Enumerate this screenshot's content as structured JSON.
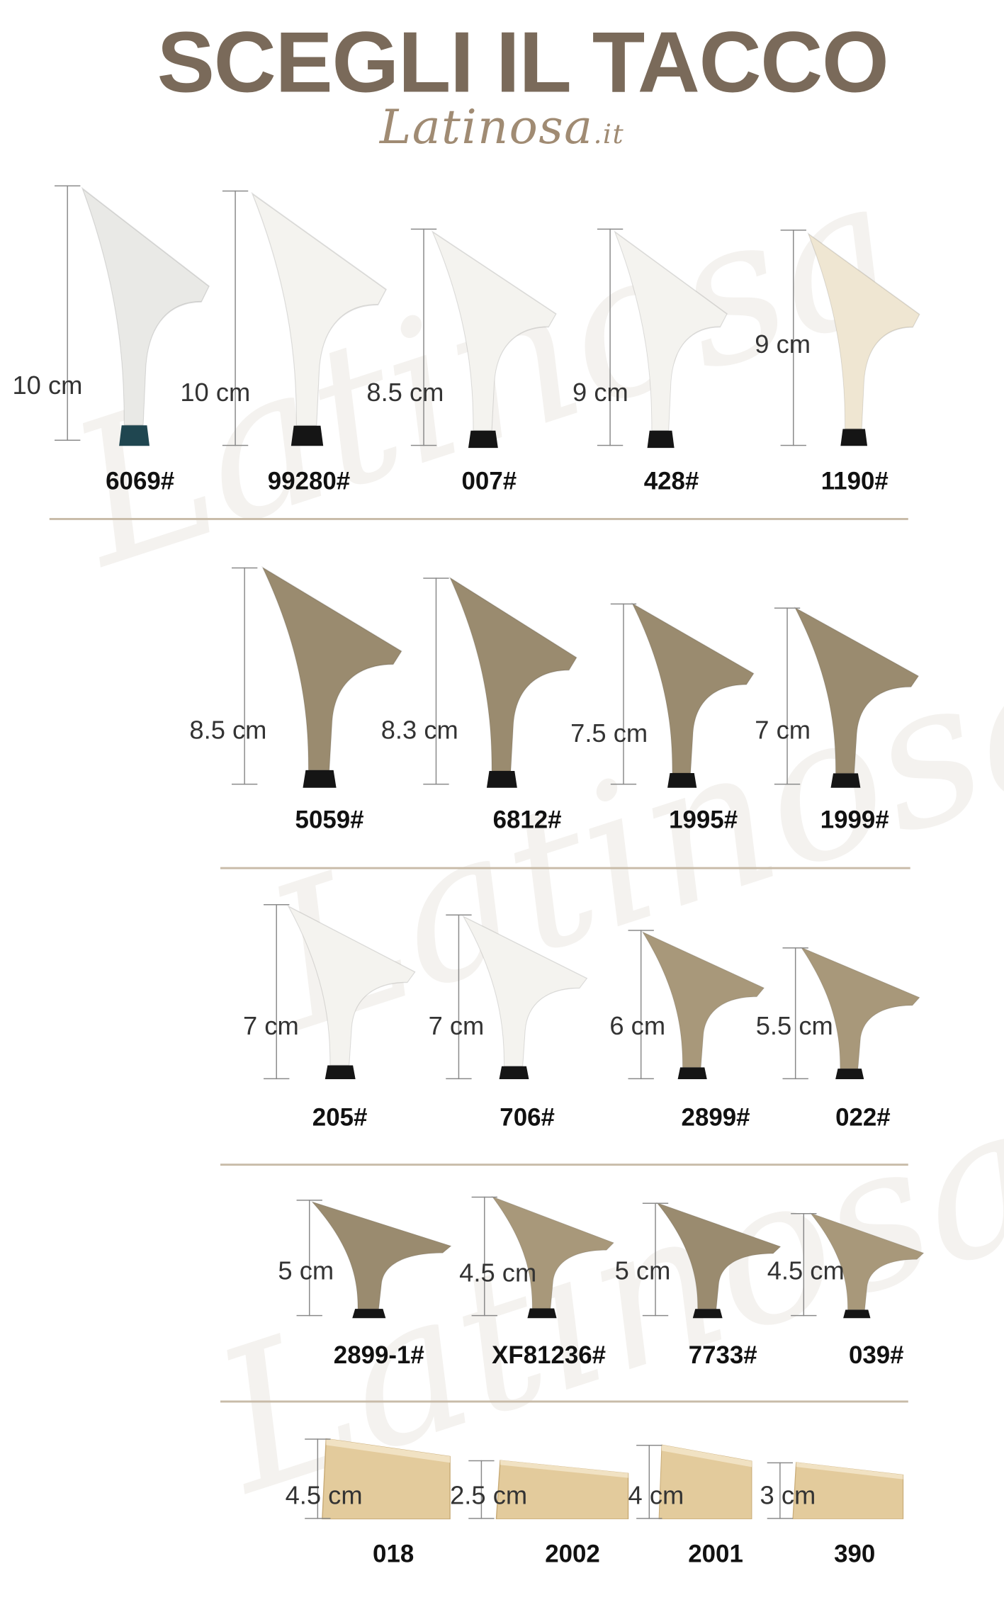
{
  "title": "SCEGLI IL TACCO",
  "brand": {
    "name": "Latinosa",
    "suffix": ".it"
  },
  "colors": {
    "title": "#7a6a5a",
    "white_heel": "#f4f3ef",
    "cream_heel": "#efe6d2",
    "tan_heel": "#9a8b6f",
    "wood_heel": "#e3cb9c",
    "tip": "#151515",
    "tip_teal": "#1f4650"
  },
  "rows": [
    {
      "items": [
        {
          "code": "6069#",
          "height": "10 cm",
          "color": "#e9e9e6",
          "tip": "#1f4650"
        },
        {
          "code": "99280#",
          "height": "10 cm",
          "color": "#f4f3ef",
          "tip": "#151515"
        },
        {
          "code": "007#",
          "height": "8.5 cm",
          "color": "#f4f3ef",
          "tip": "#151515"
        },
        {
          "code": "428#",
          "height": "9 cm",
          "color": "#f4f3ef",
          "tip": "#151515"
        },
        {
          "code": "1190#",
          "height": "9 cm",
          "color": "#efe6d2",
          "tip": "#151515"
        }
      ]
    },
    {
      "items": [
        {
          "code": "5059#",
          "height": "8.5 cm",
          "color": "#9a8b6f",
          "tip": "#151515"
        },
        {
          "code": "6812#",
          "height": "8.3 cm",
          "color": "#9a8b6f",
          "tip": "#151515"
        },
        {
          "code": "1995#",
          "height": "7.5 cm",
          "color": "#9a8b6f",
          "tip": "#151515"
        },
        {
          "code": "1999#",
          "height": "7 cm",
          "color": "#9a8b6f",
          "tip": "#151515"
        }
      ]
    },
    {
      "items": [
        {
          "code": "205#",
          "height": "7 cm",
          "color": "#f4f3ef",
          "tip": "#151515"
        },
        {
          "code": "706#",
          "height": "7 cm",
          "color": "#f4f3ef",
          "tip": "#151515"
        },
        {
          "code": "2899#",
          "height": "6 cm",
          "color": "#a8987a",
          "tip": "#151515"
        },
        {
          "code": "022#",
          "height": "5.5 cm",
          "color": "#a8987a",
          "tip": "#151515"
        }
      ]
    },
    {
      "items": [
        {
          "code": "2899-1#",
          "height": "5 cm",
          "color": "#9a8b6f",
          "tip": "#151515"
        },
        {
          "code": "XF81236#",
          "height": "4.5 cm",
          "color": "#a8987a",
          "tip": "#151515"
        },
        {
          "code": "7733#",
          "height": "5 cm",
          "color": "#9a8b6f",
          "tip": "#151515"
        },
        {
          "code": "039#",
          "height": "4.5 cm",
          "color": "#a8987a",
          "tip": "#151515"
        }
      ]
    },
    {
      "items": [
        {
          "code": "018",
          "height": "4.5 cm",
          "color": "#e3cb9c",
          "tip": ""
        },
        {
          "code": "2002",
          "height": "2.5 cm",
          "color": "#e3cb9c",
          "tip": ""
        },
        {
          "code": "2001",
          "height": "4 cm",
          "color": "#e3cb9c",
          "tip": ""
        },
        {
          "code": "390",
          "height": "3 cm",
          "color": "#e3cb9c",
          "tip": ""
        }
      ]
    }
  ]
}
